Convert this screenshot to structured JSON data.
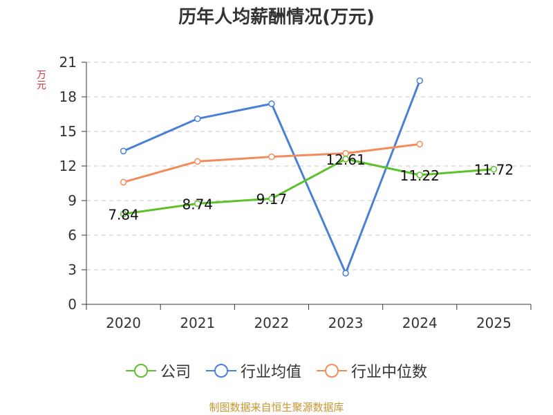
{
  "chart_data": {
    "type": "line",
    "title": "历年人均薪酬情况(万元)",
    "ylabel": "万元",
    "xlabel": "",
    "categories": [
      "2020",
      "2021",
      "2022",
      "2023",
      "2024",
      "2025"
    ],
    "ylim": [
      0,
      21
    ],
    "yticks": [
      0,
      3,
      6,
      9,
      12,
      15,
      18,
      21
    ],
    "grid": true,
    "legend_position": "bottom",
    "series": [
      {
        "name": "公司",
        "color": "#5cc12a",
        "values": [
          7.84,
          8.74,
          9.17,
          12.61,
          11.22,
          11.72
        ],
        "labels": [
          "7.84",
          "8.74",
          "9.17",
          "12.61",
          "11.22",
          "11.72"
        ]
      },
      {
        "name": "行业均值",
        "color": "#4a7fd6",
        "values": [
          13.3,
          16.1,
          17.4,
          2.7,
          19.4,
          null
        ]
      },
      {
        "name": "行业中位数",
        "color": "#f28c5b",
        "values": [
          10.6,
          12.4,
          12.8,
          13.1,
          13.9,
          null
        ]
      }
    ]
  },
  "footer": {
    "source": "制图数据来自恒生聚源数据库"
  }
}
